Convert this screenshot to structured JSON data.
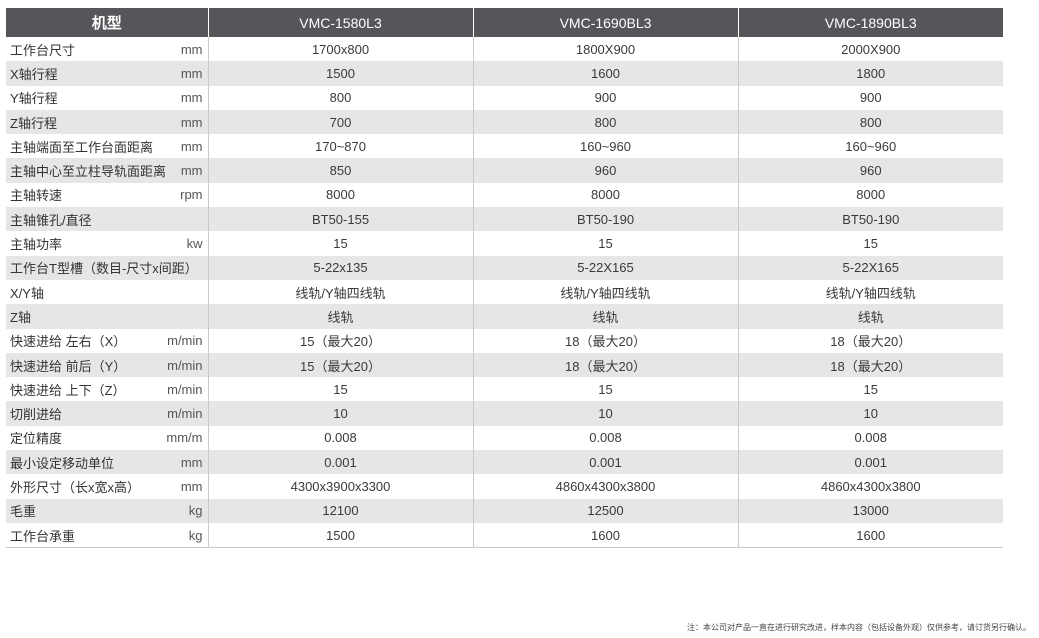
{
  "header": {
    "label": "机型",
    "models": [
      "VMC-1580L3",
      "VMC-1690BL3",
      "VMC-1890BL3"
    ]
  },
  "rows": [
    {
      "name": "工作台尺寸",
      "unit": "mm",
      "values": [
        "1700x800",
        "1800X900",
        "2000X900"
      ]
    },
    {
      "name": "X轴行程",
      "unit": "mm",
      "values": [
        "1500",
        "1600",
        "1800"
      ]
    },
    {
      "name": "Y轴行程",
      "unit": "mm",
      "values": [
        "800",
        "900",
        "900"
      ]
    },
    {
      "name": "Z轴行程",
      "unit": "mm",
      "values": [
        "700",
        "800",
        "800"
      ]
    },
    {
      "name": "主轴端面至工作台面距离",
      "unit": "mm",
      "values": [
        "170~870",
        "160~960",
        "160~960"
      ]
    },
    {
      "name": "主轴中心至立柱导轨面距离",
      "unit": "mm",
      "values": [
        "850",
        "960",
        "960"
      ]
    },
    {
      "name": "主轴转速",
      "unit": "rpm",
      "values": [
        "8000",
        "8000",
        "8000"
      ]
    },
    {
      "name": "主轴锥孔/直径",
      "unit": "",
      "values": [
        "BT50-155",
        "BT50-190",
        "BT50-190"
      ]
    },
    {
      "name": "主轴功率",
      "unit": "kw",
      "values": [
        "15",
        "15",
        "15"
      ]
    },
    {
      "name": "工作台T型槽（数目-尺寸x间距）",
      "unit": "",
      "values": [
        "5-22x135",
        "5-22X165",
        "5-22X165"
      ]
    },
    {
      "name": "X/Y轴",
      "unit": "",
      "values": [
        "线轨/Y轴四线轨",
        "线轨/Y轴四线轨",
        "线轨/Y轴四线轨"
      ]
    },
    {
      "name": "Z轴",
      "unit": "",
      "values": [
        "线轨",
        "线轨",
        "线轨"
      ]
    },
    {
      "name": "快速进给 左右（X）",
      "unit": "m/min",
      "values": [
        "15（最大20）",
        "18（最大20）",
        "18（最大20）"
      ]
    },
    {
      "name": "快速进给 前后（Y）",
      "unit": "m/min",
      "values": [
        "15（最大20）",
        "18（最大20）",
        "18（最大20）"
      ]
    },
    {
      "name": "快速进给 上下（Z）",
      "unit": "m/min",
      "values": [
        "15",
        "15",
        "15"
      ]
    },
    {
      "name": "切削进给",
      "unit": "m/min",
      "values": [
        "10",
        "10",
        "10"
      ]
    },
    {
      "name": "定位精度",
      "unit": "mm/m",
      "values": [
        "0.008",
        "0.008",
        "0.008"
      ]
    },
    {
      "name": "最小设定移动单位",
      "unit": "mm",
      "values": [
        "0.001",
        "0.001",
        "0.001"
      ]
    },
    {
      "name": "外形尺寸（长x宽x高）",
      "unit": "mm",
      "values": [
        "4300x3900x3300",
        "4860x4300x3800",
        "4860x4300x3800"
      ]
    },
    {
      "name": "毛重",
      "unit": "kg",
      "values": [
        "12100",
        "12500",
        "13000"
      ]
    },
    {
      "name": "工作台承重",
      "unit": "kg",
      "values": [
        "1500",
        "1600",
        "1600"
      ]
    }
  ],
  "note": "注：本公司对产品一直在进行研究改进，样本内容（包括设备外观）仅供参考，请订货另行确认。"
}
